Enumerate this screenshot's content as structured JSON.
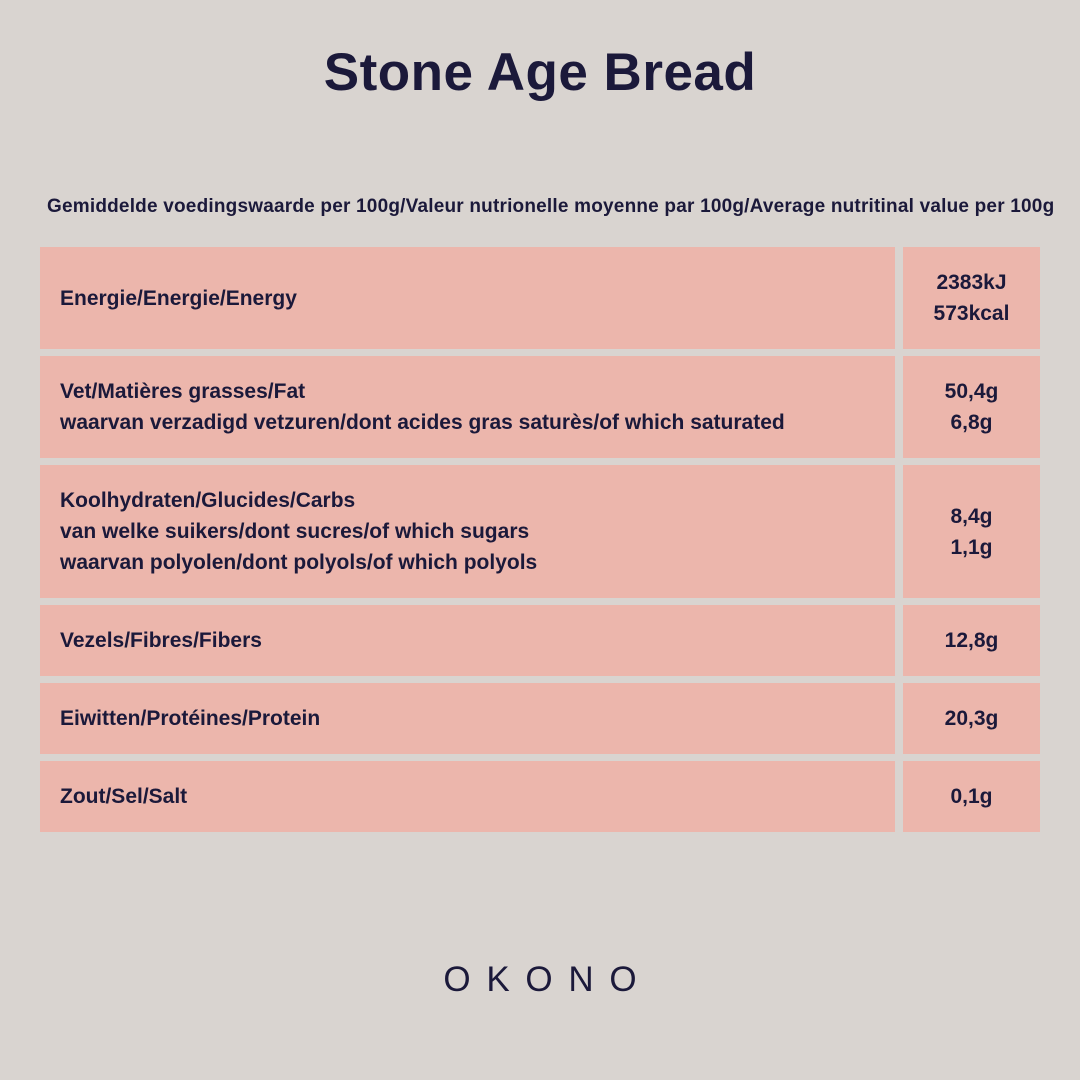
{
  "page": {
    "title": "Stone Age Bread",
    "subtitle": "Gemiddelde voedingswaarde per 100g/Valeur nutrionelle moyenne par 100g/Average nutritinal value per 100g",
    "brand": "OKONO"
  },
  "colors": {
    "background": "#d9d4d0",
    "row_background": "#ecb6ac",
    "text": "#1b193a"
  },
  "table": {
    "rows": [
      {
        "labels": [
          "Energie/Energie/Energy"
        ],
        "values": [
          "2383kJ",
          "573kcal"
        ]
      },
      {
        "labels": [
          "Vet/Matières grasses/Fat",
          "waarvan verzadigd vetzuren/dont acides gras saturès/of which saturated"
        ],
        "values": [
          "50,4g",
          "6,8g"
        ]
      },
      {
        "labels": [
          "Koolhydraten/Glucides/Carbs",
          "van welke suikers/dont sucres/of which sugars",
          "waarvan polyolen/dont polyols/of which polyols"
        ],
        "values": [
          "8,4g",
          "1,1g"
        ]
      },
      {
        "labels": [
          "Vezels/Fibres/Fibers"
        ],
        "values": [
          "12,8g"
        ]
      },
      {
        "labels": [
          "Eiwitten/Protéines/Protein"
        ],
        "values": [
          "20,3g"
        ]
      },
      {
        "labels": [
          "Zout/Sel/Salt"
        ],
        "values": [
          "0,1g"
        ]
      }
    ]
  }
}
